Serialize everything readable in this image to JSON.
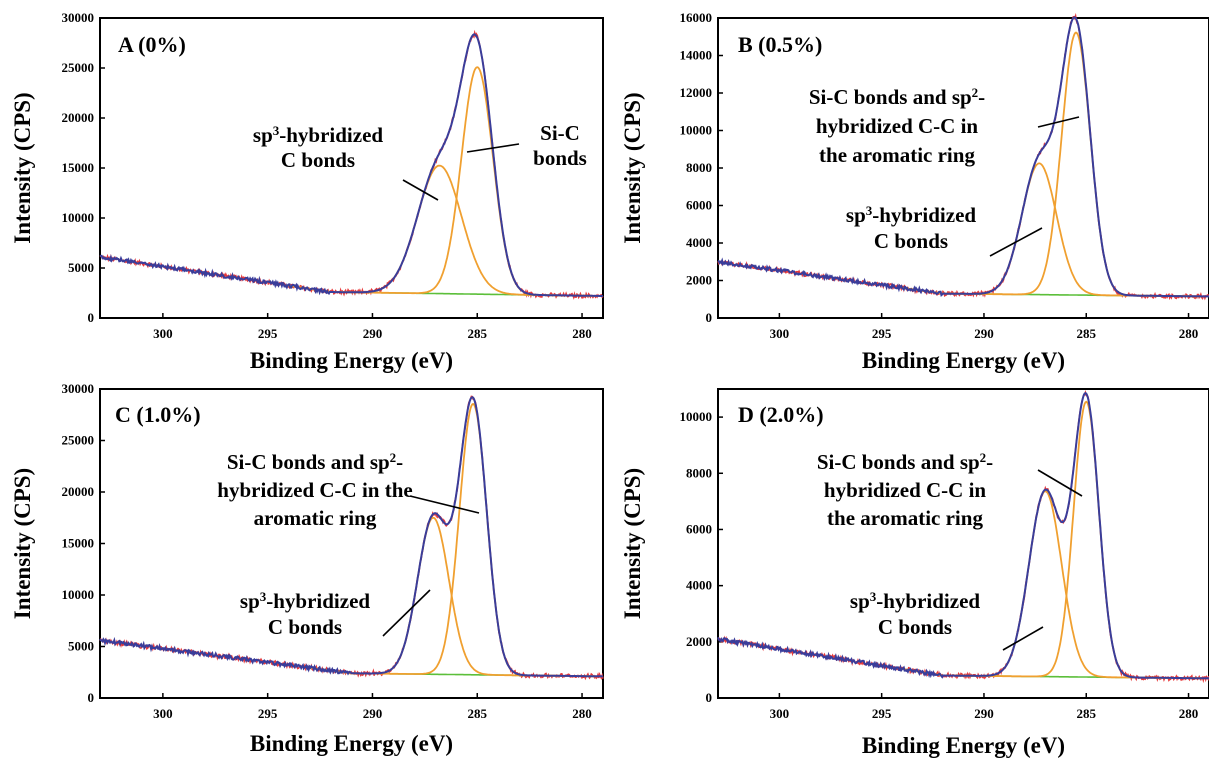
{
  "colors": {
    "raw": "#e8393a",
    "fit": "#3a3d9a",
    "component": "#f0a030",
    "background": "#5cbf3a"
  },
  "chart_data": [
    {
      "type": "line",
      "panel_label": "A (0%)",
      "xlabel": "Binding Energy (eV)",
      "ylabel": "Intensity (CPS)",
      "xlim": [
        303,
        279
      ],
      "ylim": [
        0,
        30000
      ],
      "xticks": [
        "300",
        "295",
        "290",
        "285",
        "280"
      ],
      "yticks": [
        "0",
        "5000",
        "10000",
        "15000",
        "20000",
        "25000",
        "30000"
      ],
      "baseline": {
        "start": 6100,
        "mid": 2600,
        "end": 2200,
        "plateau_x": 292
      },
      "peaks": [
        {
          "center": 286.8,
          "height": 12800,
          "sigma": 1.05
        },
        {
          "center": 285.0,
          "height": 22700,
          "sigma": 0.75
        }
      ],
      "annotations": [
        {
          "lines": [
            [
              {
                "t": "sp"
              },
              {
                "t": "3",
                "sup": true
              },
              {
                "t": "-hybridized"
              }
            ],
            [
              {
                "t": "C bonds"
              }
            ]
          ]
        },
        {
          "lines": [
            [
              {
                "t": "Si-C"
              }
            ],
            [
              {
                "t": "bonds"
              }
            ]
          ]
        }
      ]
    },
    {
      "type": "line",
      "panel_label": "B (0.5%)",
      "xlabel": "Binding Energy (eV)",
      "ylabel": "Intensity (CPS)",
      "xlim": [
        303,
        279
      ],
      "ylim": [
        0,
        16000
      ],
      "xticks": [
        "300",
        "295",
        "290",
        "285",
        "280"
      ],
      "yticks": [
        "0",
        "2000",
        "4000",
        "6000",
        "8000",
        "10000",
        "12000",
        "14000",
        "16000"
      ],
      "baseline": {
        "start": 3000,
        "mid": 1300,
        "end": 1150,
        "plateau_x": 292
      },
      "peaks": [
        {
          "center": 287.3,
          "height": 7000,
          "sigma": 0.85
        },
        {
          "center": 285.5,
          "height": 14000,
          "sigma": 0.7
        }
      ],
      "annotations": [
        {
          "lines": [
            [
              {
                "t": "Si-C bonds and sp"
              },
              {
                "t": "2",
                "sup": true
              },
              {
                "t": "-"
              }
            ],
            [
              {
                "t": "hybridized C-C in"
              }
            ],
            [
              {
                "t": "the aromatic ring"
              }
            ]
          ]
        },
        {
          "lines": [
            [
              {
                "t": "sp"
              },
              {
                "t": "3",
                "sup": true
              },
              {
                "t": "-hybridized"
              }
            ],
            [
              {
                "t": "C bonds"
              }
            ]
          ]
        }
      ]
    },
    {
      "type": "line",
      "panel_label": "C (1.0%)",
      "xlabel": "Binding Energy (eV)",
      "ylabel": "Intensity (CPS)",
      "xlim": [
        303,
        279
      ],
      "ylim": [
        0,
        30000
      ],
      "xticks": [
        "300",
        "295",
        "290",
        "285",
        "280"
      ],
      "yticks": [
        "0",
        "5000",
        "10000",
        "15000",
        "20000",
        "25000",
        "30000"
      ],
      "baseline": {
        "start": 5600,
        "mid": 2400,
        "end": 2100,
        "plateau_x": 291
      },
      "peaks": [
        {
          "center": 287.1,
          "height": 15200,
          "sigma": 0.75
        },
        {
          "center": 285.2,
          "height": 26300,
          "sigma": 0.65
        }
      ],
      "annotations": [
        {
          "lines": [
            [
              {
                "t": "Si-C bonds and sp"
              },
              {
                "t": "2",
                "sup": true
              },
              {
                "t": "-"
              }
            ],
            [
              {
                "t": "hybridized C-C in the"
              }
            ],
            [
              {
                "t": "aromatic ring"
              }
            ]
          ]
        },
        {
          "lines": [
            [
              {
                "t": "sp"
              },
              {
                "t": "3",
                "sup": true
              },
              {
                "t": "-hybridized"
              }
            ],
            [
              {
                "t": "C bonds"
              }
            ]
          ]
        }
      ]
    },
    {
      "type": "line",
      "panel_label": "D (2.0%)",
      "xlabel": "Binding Energy (eV)",
      "ylabel": "Intensity (CPS)",
      "xlim": [
        303,
        279
      ],
      "ylim": [
        0,
        11000
      ],
      "xticks": [
        "300",
        "295",
        "290",
        "285",
        "280"
      ],
      "yticks": [
        "0",
        "2000",
        "4000",
        "6000",
        "8000",
        "10000"
      ],
      "baseline": {
        "start": 2100,
        "mid": 800,
        "end": 700,
        "plateau_x": 292
      },
      "peaks": [
        {
          "center": 287.0,
          "height": 6600,
          "sigma": 0.8
        },
        {
          "center": 285.0,
          "height": 9800,
          "sigma": 0.62
        }
      ],
      "annotations": [
        {
          "lines": [
            [
              {
                "t": "Si-C bonds and sp"
              },
              {
                "t": "2",
                "sup": true
              },
              {
                "t": "-"
              }
            ],
            [
              {
                "t": "hybridized C-C in"
              }
            ],
            [
              {
                "t": "the aromatic ring"
              }
            ]
          ]
        },
        {
          "lines": [
            [
              {
                "t": "sp"
              },
              {
                "t": "3",
                "sup": true
              },
              {
                "t": "-hybridized"
              }
            ],
            [
              {
                "t": "C bonds"
              }
            ]
          ]
        }
      ]
    }
  ]
}
